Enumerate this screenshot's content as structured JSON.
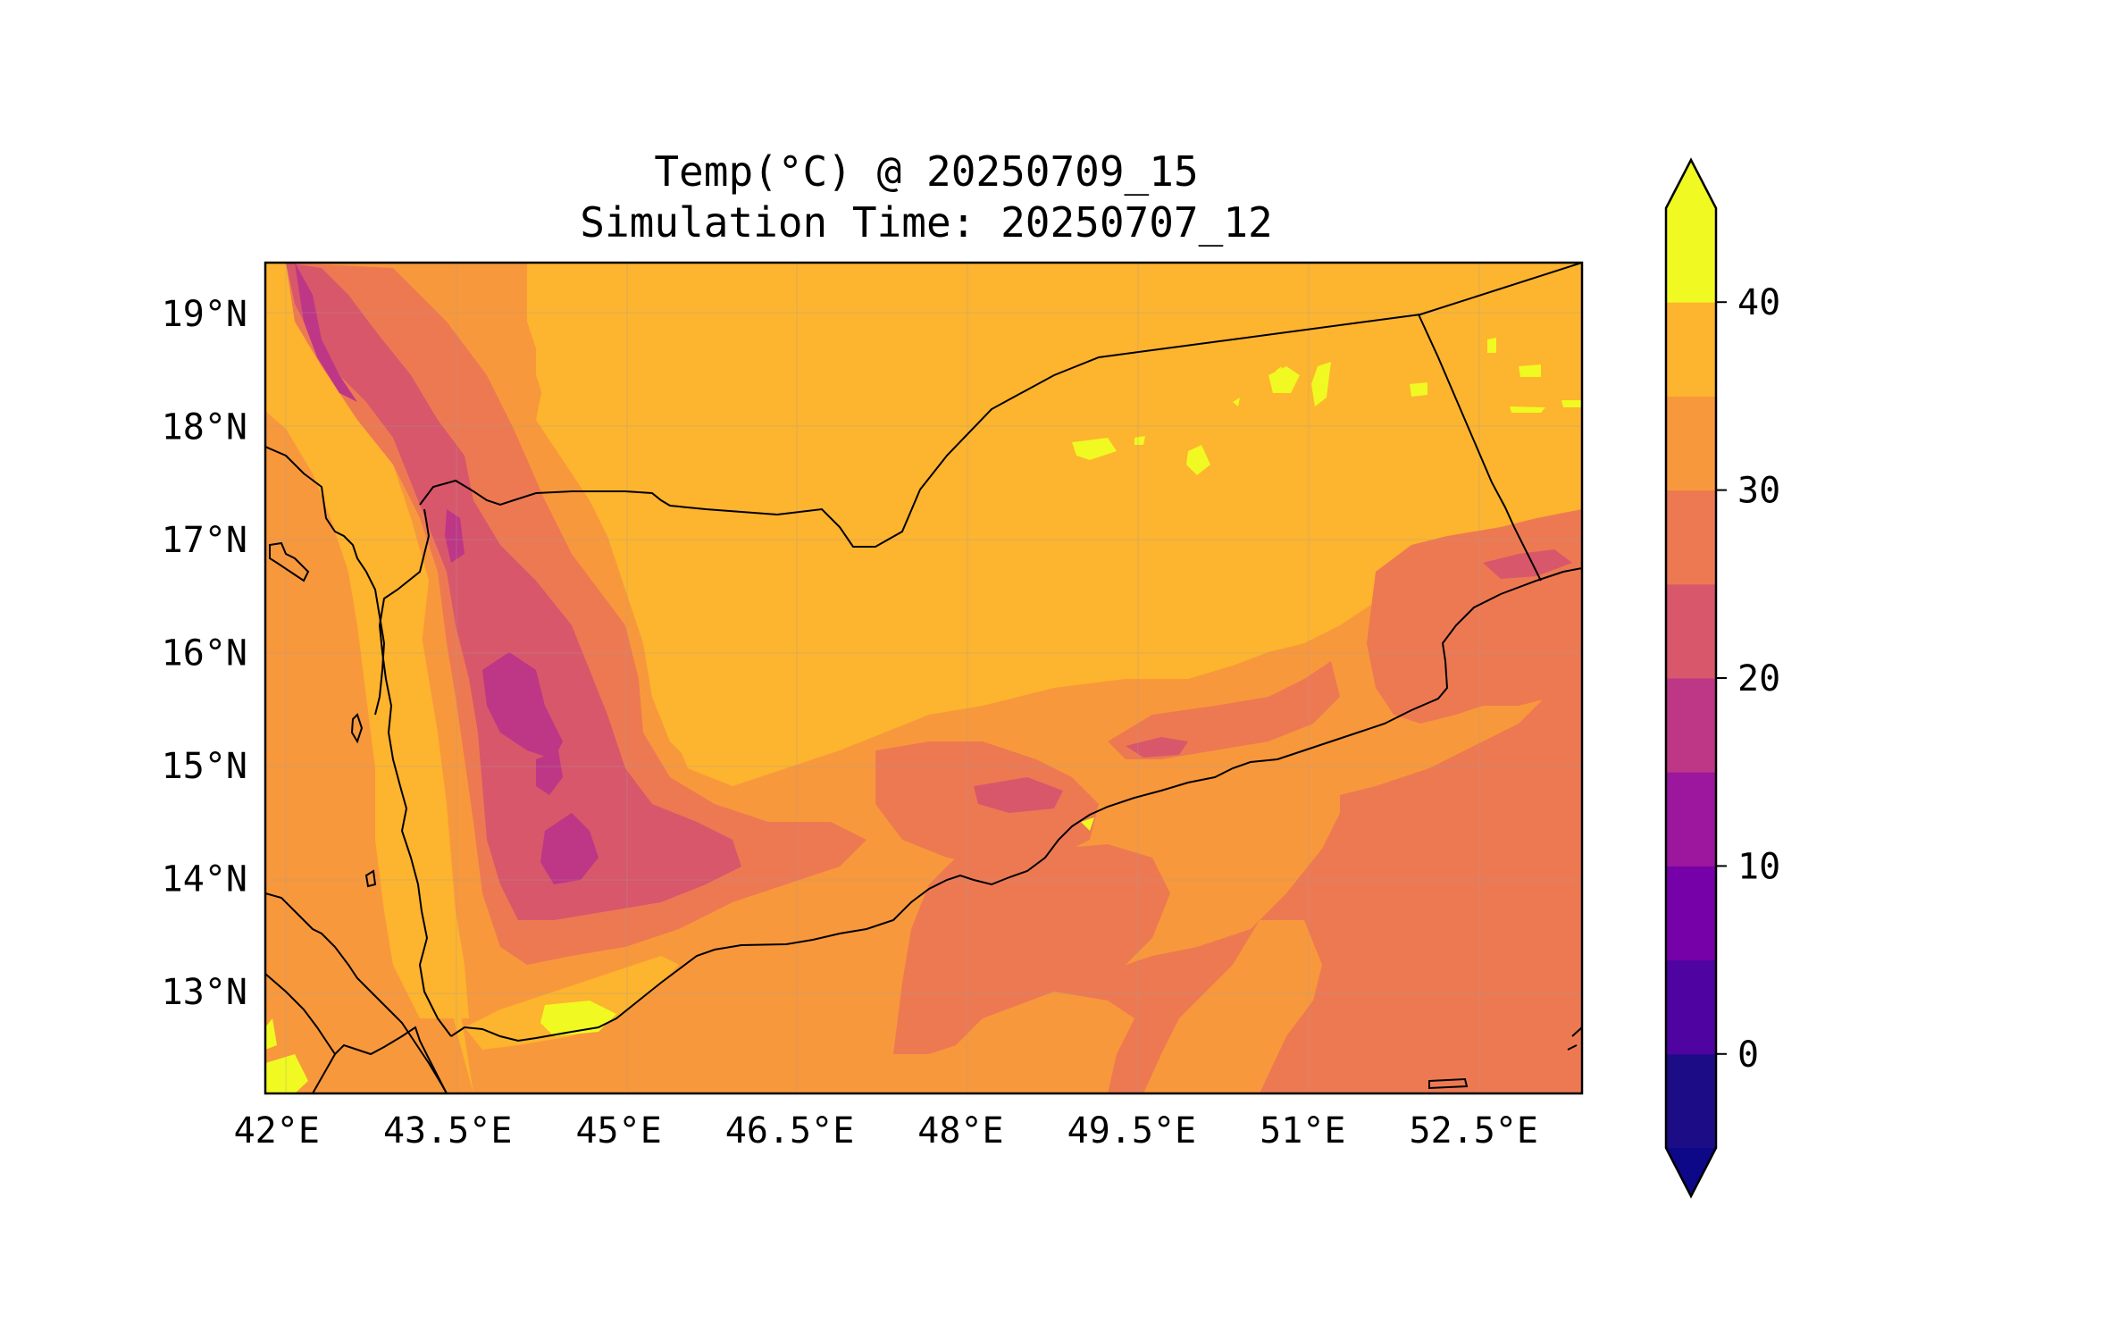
{
  "title": {
    "line1": "Temp(°C) @ 20250709_15",
    "line2": "Simulation Time: 20250707_12"
  },
  "chart_data": {
    "type": "heatmap",
    "variable": "Temp(°C)",
    "valid_time": "20250709_15",
    "simulation_time": "20250707_12",
    "xlim": [
      41.9,
      53.45
    ],
    "ylim": [
      12.1,
      19.45
    ],
    "x_ticks": [
      "42°E",
      "43.5°E",
      "45°E",
      "46.5°E",
      "48°E",
      "49.5°E",
      "51°E",
      "52.5°E"
    ],
    "x_tick_values": [
      42,
      43.5,
      45,
      46.5,
      48,
      49.5,
      51,
      52.5
    ],
    "y_ticks": [
      "13°N",
      "14°N",
      "15°N",
      "16°N",
      "17°N",
      "18°N",
      "19°N"
    ],
    "y_tick_values": [
      13,
      14,
      15,
      16,
      17,
      18,
      19
    ],
    "grid": true,
    "colorbar": {
      "levels": [
        -5,
        0,
        5,
        10,
        15,
        20,
        25,
        30,
        35,
        40,
        45
      ],
      "colors": [
        "#1c0c86",
        "#4f03a0",
        "#7701a8",
        "#9c179e",
        "#bd3786",
        "#d8576b",
        "#ed7953",
        "#f8983c",
        "#fdb42f",
        "#f0f921"
      ],
      "extend": "both",
      "under_color": "#0d0887",
      "over_color": "#f0f921",
      "tick_labels": [
        "0",
        "10",
        "20",
        "30",
        "40"
      ],
      "tick_values": [
        0,
        10,
        20,
        30,
        40
      ],
      "location": "right"
    }
  }
}
